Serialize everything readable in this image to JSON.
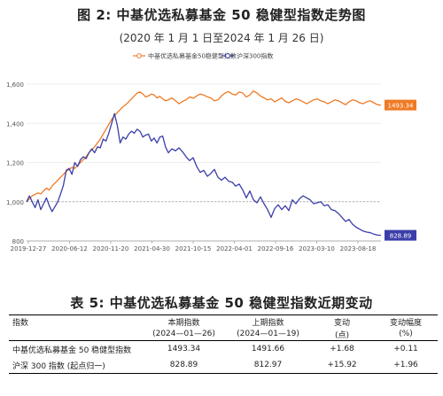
{
  "figure": {
    "title": "图 2: 中基优选私募基金 50 稳健型指数走势图",
    "subtitle": "(2020 年 1 月 1 日至2024 年 1 月 26 日)"
  },
  "chart_data": {
    "type": "line",
    "x_ticks": [
      "2019-12-27",
      "2020-06-12",
      "2020-11-20",
      "2021-04-30",
      "2021-10-15",
      "2022-04-01",
      "2022-09-16",
      "2023-03-10",
      "2023-08-18"
    ],
    "y_ticks": [
      "800",
      "1,000",
      "1,200",
      "1,400",
      "1,600"
    ],
    "ylim": [
      800,
      1600
    ],
    "xlim": [
      0,
      1
    ],
    "reference_line": 1000,
    "grid": "horizontal",
    "legend_position": "top-center",
    "series": [
      {
        "name": "中基优选私募基金50稳健型指数",
        "color": "#f07a24",
        "end_label": "1493.34",
        "x": [
          0,
          0.008,
          0.016,
          0.024,
          0.032,
          0.04,
          0.048,
          0.056,
          0.064,
          0.072,
          0.08,
          0.088,
          0.096,
          0.104,
          0.112,
          0.12,
          0.128,
          0.136,
          0.144,
          0.152,
          0.16,
          0.168,
          0.176,
          0.184,
          0.192,
          0.2,
          0.208,
          0.216,
          0.224,
          0.232,
          0.24,
          0.248,
          0.256,
          0.264,
          0.272,
          0.28,
          0.288,
          0.296,
          0.304,
          0.312,
          0.32,
          0.328,
          0.336,
          0.344,
          0.352,
          0.36,
          0.368,
          0.376,
          0.384,
          0.392,
          0.4,
          0.41,
          0.42,
          0.43,
          0.44,
          0.45,
          0.46,
          0.47,
          0.48,
          0.49,
          0.5,
          0.51,
          0.52,
          0.53,
          0.54,
          0.55,
          0.56,
          0.57,
          0.58,
          0.59,
          0.6,
          0.61,
          0.62,
          0.63,
          0.64,
          0.65,
          0.66,
          0.67,
          0.68,
          0.69,
          0.7,
          0.71,
          0.72,
          0.73,
          0.74,
          0.75,
          0.76,
          0.77,
          0.78,
          0.79,
          0.8,
          0.81,
          0.82,
          0.83,
          0.84,
          0.85,
          0.86,
          0.87,
          0.88,
          0.89,
          0.9,
          0.91,
          0.92,
          0.93,
          0.94,
          0.95,
          0.96,
          0.97,
          0.98,
          0.99,
          1.0
        ],
        "y": [
          1000,
          1015,
          1030,
          1038,
          1045,
          1040,
          1055,
          1070,
          1060,
          1080,
          1095,
          1110,
          1125,
          1140,
          1155,
          1165,
          1175,
          1170,
          1185,
          1200,
          1215,
          1230,
          1250,
          1265,
          1280,
          1300,
          1320,
          1345,
          1370,
          1395,
          1420,
          1440,
          1455,
          1470,
          1485,
          1495,
          1510,
          1525,
          1540,
          1555,
          1560,
          1550,
          1535,
          1540,
          1550,
          1545,
          1530,
          1538,
          1525,
          1515,
          1520,
          1530,
          1515,
          1500,
          1512,
          1520,
          1535,
          1528,
          1540,
          1550,
          1545,
          1535,
          1530,
          1515,
          1520,
          1540,
          1555,
          1562,
          1550,
          1545,
          1560,
          1555,
          1535,
          1545,
          1565,
          1555,
          1540,
          1530,
          1520,
          1525,
          1510,
          1520,
          1530,
          1512,
          1505,
          1515,
          1525,
          1520,
          1510,
          1500,
          1510,
          1520,
          1525,
          1515,
          1510,
          1500,
          1510,
          1520,
          1515,
          1505,
          1495,
          1510,
          1520,
          1515,
          1505,
          1500,
          1510,
          1515,
          1505,
          1495,
          1493.34
        ]
      },
      {
        "name": "沪深300指数",
        "color": "#3b3ea8",
        "end_label": "828.89",
        "x": [
          0,
          0.008,
          0.016,
          0.024,
          0.032,
          0.04,
          0.048,
          0.056,
          0.064,
          0.072,
          0.08,
          0.088,
          0.096,
          0.104,
          0.112,
          0.12,
          0.128,
          0.136,
          0.144,
          0.152,
          0.16,
          0.168,
          0.176,
          0.184,
          0.192,
          0.2,
          0.208,
          0.216,
          0.224,
          0.232,
          0.24,
          0.248,
          0.256,
          0.264,
          0.272,
          0.28,
          0.288,
          0.296,
          0.304,
          0.312,
          0.32,
          0.328,
          0.336,
          0.344,
          0.352,
          0.36,
          0.368,
          0.376,
          0.384,
          0.392,
          0.4,
          0.41,
          0.42,
          0.43,
          0.44,
          0.45,
          0.46,
          0.47,
          0.48,
          0.49,
          0.5,
          0.51,
          0.52,
          0.53,
          0.54,
          0.55,
          0.56,
          0.57,
          0.58,
          0.59,
          0.6,
          0.61,
          0.62,
          0.63,
          0.64,
          0.65,
          0.66,
          0.67,
          0.68,
          0.69,
          0.7,
          0.71,
          0.72,
          0.73,
          0.74,
          0.75,
          0.76,
          0.77,
          0.78,
          0.79,
          0.8,
          0.81,
          0.82,
          0.83,
          0.84,
          0.85,
          0.86,
          0.87,
          0.88,
          0.89,
          0.9,
          0.91,
          0.92,
          0.93,
          0.94,
          0.95,
          0.96,
          0.97,
          0.98,
          0.99,
          1.0
        ],
        "y": [
          1000,
          1030,
          1000,
          970,
          1010,
          960,
          990,
          1020,
          980,
          950,
          975,
          1000,
          1040,
          1085,
          1160,
          1170,
          1140,
          1200,
          1180,
          1215,
          1230,
          1220,
          1250,
          1270,
          1250,
          1280,
          1275,
          1320,
          1310,
          1350,
          1400,
          1450,
          1390,
          1300,
          1330,
          1320,
          1345,
          1360,
          1350,
          1370,
          1360,
          1330,
          1340,
          1345,
          1310,
          1325,
          1300,
          1330,
          1335,
          1280,
          1250,
          1270,
          1260,
          1275,
          1255,
          1230,
          1210,
          1225,
          1180,
          1150,
          1160,
          1130,
          1145,
          1165,
          1125,
          1110,
          1125,
          1105,
          1100,
          1080,
          1090,
          1060,
          1020,
          1055,
          1010,
          995,
          1025,
          990,
          960,
          920,
          965,
          985,
          960,
          980,
          955,
          1010,
          990,
          1015,
          1030,
          1020,
          1010,
          990,
          995,
          1000,
          980,
          985,
          960,
          955,
          940,
          920,
          900,
          910,
          885,
          870,
          860,
          850,
          845,
          842,
          835,
          830,
          828.89
        ]
      }
    ]
  },
  "table": {
    "title": "表 5: 中基优选私募基金 50 稳健型指数近期变动",
    "headers": {
      "col1": "指数",
      "col2a": "本期指数",
      "col2b": "(2024—01—26)",
      "col3a": "上期指数",
      "col3b": "(2024—01—19)",
      "col4a": "变动",
      "col4b": "(点)",
      "col5a": "变动幅度",
      "col5b": "(%)"
    },
    "rows": [
      [
        "中基优选私募基金 50 稳健型指数",
        "1493.34",
        "1491.66",
        "+1.68",
        "+0.11"
      ],
      [
        "沪深 300 指数 (起点归一)",
        "828.89",
        "812.97",
        "+15.92",
        "+1.96"
      ]
    ]
  }
}
